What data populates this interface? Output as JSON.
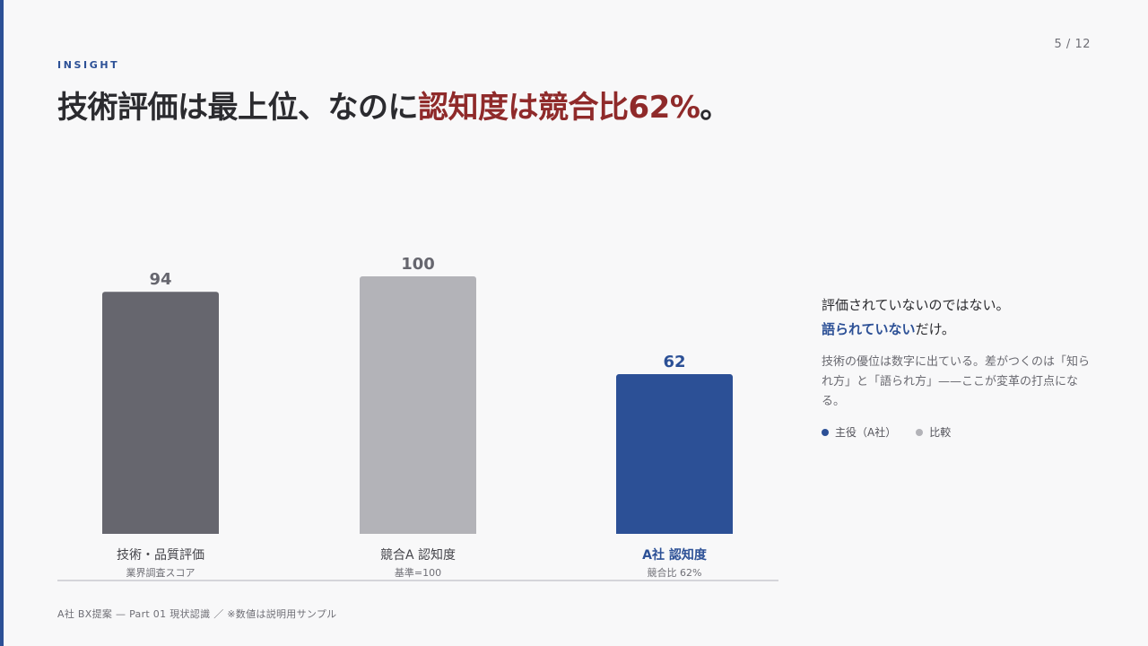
{
  "page_number": "5 / 12",
  "eyebrow": "INSIGHT",
  "headline": {
    "part1": "技術評価は最上位、なのに",
    "part2": "認知度は競合比62%",
    "part3": "。"
  },
  "side": {
    "lead_line1": "評価されていないのではない。",
    "lead_line2_strong": "語られていない",
    "lead_line2_rest": "だけ。",
    "body": "技術の優位は数字に出ている。差がつくのは「知られ方」と「語られ方」——ここが変革の打点になる。",
    "legend": [
      {
        "label": "主役（A社）",
        "color": "#2c5096"
      },
      {
        "label": "比較",
        "color": "#b3b3b8"
      }
    ]
  },
  "footer": "A社 BX提案 — Part 01 現状認識 ／ ※数値は説明用サンプル",
  "colors": {
    "accent": "#2c5096",
    "highlight": "#8f2a2a",
    "bar_dark": "#66666e",
    "bar_light": "#b3b3b8"
  },
  "chart_data": {
    "type": "bar",
    "categories": [
      "技術・品質評価",
      "競合A 認知度",
      "A社 認知度"
    ],
    "sublabels": [
      "業界調査スコア",
      "基準=100",
      "競合比 62%"
    ],
    "values": [
      94,
      100,
      62
    ],
    "value_labels": [
      "94",
      "100",
      "62"
    ],
    "bar_colors": [
      "#66666e",
      "#b3b3b8",
      "#2c5096"
    ],
    "highlight_index": 2,
    "ylim": [
      0,
      100
    ],
    "grid": false,
    "title": "",
    "xlabel": "",
    "ylabel": ""
  }
}
